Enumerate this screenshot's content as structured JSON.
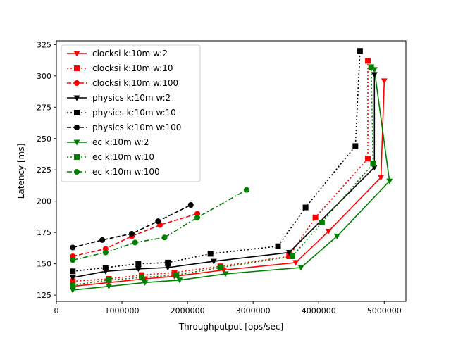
{
  "chart_data": {
    "type": "line",
    "title": "",
    "xlabel": "Throughputput [ops/sec]",
    "ylabel": "Latency [ms]",
    "xlim": [
      0,
      5330000
    ],
    "ylim": [
      120,
      328
    ],
    "xticks": [
      0,
      1000000,
      2000000,
      3000000,
      4000000,
      5000000
    ],
    "yticks": [
      125,
      150,
      175,
      200,
      225,
      250,
      275,
      300,
      325
    ],
    "xtick_labels": [
      "0",
      "1000000",
      "2000000",
      "3000000",
      "4000000",
      "5000000"
    ],
    "ytick_labels": [
      "125",
      "150",
      "175",
      "200",
      "225",
      "250",
      "275",
      "300",
      "325"
    ],
    "grid": false,
    "legend_position": "top-left",
    "series": [
      {
        "name": "clocksi k:10m w:2",
        "color": "#ff0000",
        "linestyle": "solid",
        "marker": "triangle-down",
        "x": [
          250000,
          800000,
          1350000,
          1800000,
          2550000,
          3650000,
          4150000,
          4950000,
          5000000
        ],
        "y": [
          132,
          135,
          138,
          140,
          145,
          151,
          176,
          219,
          296
        ]
      },
      {
        "name": "clocksi k:10m w:10",
        "color": "#ff0000",
        "linestyle": "dotted",
        "marker": "square",
        "x": [
          250000,
          800000,
          1300000,
          1800000,
          2500000,
          3550000,
          3950000,
          4750000,
          4750000
        ],
        "y": [
          136,
          138,
          141,
          143,
          148,
          156,
          187,
          234,
          312
        ]
      },
      {
        "name": "clocksi k:10m w:100",
        "color": "#ff0000",
        "linestyle": "dashed",
        "marker": "circle",
        "x": [
          250000,
          750000,
          1150000,
          1580000,
          2150000
        ],
        "y": [
          156,
          162,
          172,
          181,
          190
        ]
      },
      {
        "name": "physics k:10m w:2",
        "color": "#000000",
        "linestyle": "solid",
        "marker": "triangle-down",
        "x": [
          250000,
          750000,
          1250000,
          1700000,
          2400000,
          3550000,
          4850000,
          4850000
        ],
        "y": [
          139,
          144,
          146,
          147,
          152,
          159,
          227,
          301
        ]
      },
      {
        "name": "physics k:10m w:10",
        "color": "#000000",
        "linestyle": "dotted",
        "marker": "square",
        "x": [
          250000,
          750000,
          1250000,
          1700000,
          2350000,
          3380000,
          3800000,
          4560000,
          4630000
        ],
        "y": [
          144,
          147,
          150,
          151,
          158,
          164,
          195,
          244,
          320
        ]
      },
      {
        "name": "physics k:10m w:100",
        "color": "#000000",
        "linestyle": "dashed",
        "marker": "circle",
        "x": [
          250000,
          700000,
          1150000,
          1550000,
          2050000
        ],
        "y": [
          163,
          169,
          174,
          184,
          197
        ]
      },
      {
        "name": "ec k:10m w:2",
        "color": "#008000",
        "linestyle": "solid",
        "marker": "triangle-down",
        "x": [
          250000,
          800000,
          1350000,
          1880000,
          2580000,
          3730000,
          4280000,
          5080000,
          4850000
        ],
        "y": [
          129,
          132,
          135,
          137,
          142,
          147,
          172,
          216,
          305
        ]
      },
      {
        "name": "ec k:10m w:10",
        "color": "#008000",
        "linestyle": "dotted",
        "marker": "square",
        "x": [
          250000,
          800000,
          1300000,
          1830000,
          2500000,
          3600000,
          4050000,
          4830000,
          4800000
        ],
        "y": [
          133,
          137,
          139,
          141,
          147,
          156,
          183,
          230,
          307
        ]
      },
      {
        "name": "ec k:10m w:100",
        "color": "#008000",
        "linestyle": "dashdot",
        "marker": "circle",
        "x": [
          250000,
          750000,
          1200000,
          1650000,
          2150000,
          2900000
        ],
        "y": [
          153,
          159,
          167,
          171,
          187,
          209
        ]
      }
    ]
  }
}
